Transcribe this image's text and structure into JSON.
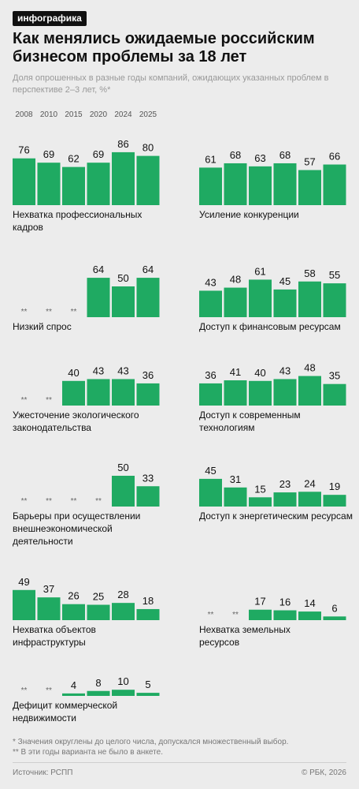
{
  "header": {
    "badge": "инфографика",
    "title": "Как менялись ожидаемые российским бизнесом проблемы за 18 лет",
    "subtitle": "Доля опрошенных в разные годы компаний, ожидающих указанных проблем в перспективе 2–3 лет, %*"
  },
  "years": [
    "2008",
    "2010",
    "2015",
    "2020",
    "2024",
    "2025"
  ],
  "chart_data": [
    {
      "type": "bar",
      "title": "Нехватка профессиональных кадров",
      "categories": [
        "2008",
        "2010",
        "2015",
        "2020",
        "2024",
        "2025"
      ],
      "values": [
        76,
        69,
        62,
        69,
        86,
        80
      ],
      "ylim": [
        0,
        100
      ]
    },
    {
      "type": "bar",
      "title": "Усиление конкуренции",
      "categories": [
        "2008",
        "2010",
        "2015",
        "2020",
        "2024",
        "2025"
      ],
      "values": [
        61,
        68,
        63,
        68,
        57,
        66
      ],
      "ylim": [
        0,
        100
      ]
    },
    {
      "type": "bar",
      "title": "Низкий спрос",
      "categories": [
        "2008",
        "2010",
        "2015",
        "2020",
        "2024",
        "2025"
      ],
      "values": [
        null,
        null,
        null,
        64,
        50,
        64
      ],
      "ylim": [
        0,
        100
      ]
    },
    {
      "type": "bar",
      "title": "Доступ к финансовым ресурсам",
      "categories": [
        "2008",
        "2010",
        "2015",
        "2020",
        "2024",
        "2025"
      ],
      "values": [
        43,
        48,
        61,
        45,
        58,
        55
      ],
      "ylim": [
        0,
        100
      ]
    },
    {
      "type": "bar",
      "title": "Ужесточение экологического законодательства",
      "categories": [
        "2008",
        "2010",
        "2015",
        "2020",
        "2024",
        "2025"
      ],
      "values": [
        null,
        null,
        40,
        43,
        43,
        36
      ],
      "ylim": [
        0,
        100
      ]
    },
    {
      "type": "bar",
      "title": "Доступ к современным технологиям",
      "categories": [
        "2008",
        "2010",
        "2015",
        "2020",
        "2024",
        "2025"
      ],
      "values": [
        36,
        41,
        40,
        43,
        48,
        35
      ],
      "ylim": [
        0,
        100
      ]
    },
    {
      "type": "bar",
      "title": "Барьеры при осуществлении внешнеэкономической деятельности",
      "categories": [
        "2008",
        "2010",
        "2015",
        "2020",
        "2024",
        "2025"
      ],
      "values": [
        null,
        null,
        null,
        null,
        50,
        33
      ],
      "ylim": [
        0,
        100
      ]
    },
    {
      "type": "bar",
      "title": "Доступ к энергетическим ресурсам",
      "categories": [
        "2008",
        "2010",
        "2015",
        "2020",
        "2024",
        "2025"
      ],
      "values": [
        45,
        31,
        15,
        23,
        24,
        19
      ],
      "ylim": [
        0,
        100
      ]
    },
    {
      "type": "bar",
      "title": "Нехватка объектов инфраструктуры",
      "categories": [
        "2008",
        "2010",
        "2015",
        "2020",
        "2024",
        "2025"
      ],
      "values": [
        49,
        37,
        26,
        25,
        28,
        18
      ],
      "ylim": [
        0,
        100
      ]
    },
    {
      "type": "bar",
      "title": "Нехватка земельных ресурсов",
      "categories": [
        "2008",
        "2010",
        "2015",
        "2020",
        "2024",
        "2025"
      ],
      "values": [
        null,
        null,
        17,
        16,
        14,
        6
      ],
      "ylim": [
        0,
        100
      ]
    },
    {
      "type": "bar",
      "title": "Дефицит коммерческой недвижимости",
      "categories": [
        "2008",
        "2010",
        "2015",
        "2020",
        "2024",
        "2025"
      ],
      "values": [
        null,
        null,
        4,
        8,
        10,
        5
      ],
      "ylim": [
        0,
        100
      ]
    }
  ],
  "missing_marker": "**",
  "footnotes": [
    "* Значения округлены до целого числа, допускался множественный выбор.",
    "** В эти годы варианта не было в анкете."
  ],
  "footer": {
    "source": "Источник: РСПП",
    "copyright": "© РБК, 2026"
  },
  "colors": {
    "bar": "#1faa62",
    "background": "#ececec",
    "text": "#111111"
  }
}
